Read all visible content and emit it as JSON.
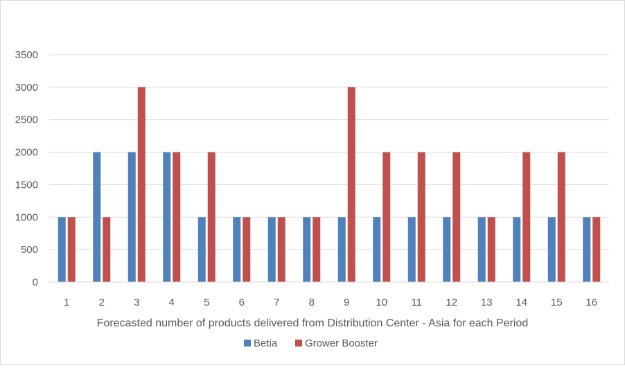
{
  "chart_data": {
    "type": "bar",
    "title": "",
    "xlabel": "Forecasted number of products delivered from Distribution Center - Asia for each Period",
    "ylabel": "",
    "categories": [
      "1",
      "2",
      "3",
      "4",
      "5",
      "6",
      "7",
      "8",
      "9",
      "10",
      "11",
      "12",
      "13",
      "14",
      "15",
      "16"
    ],
    "series": [
      {
        "name": "Betia",
        "color": "#4f81bd",
        "values": [
          1000,
          2000,
          2000,
          2000,
          1000,
          1000,
          1000,
          1000,
          1000,
          1000,
          1000,
          1000,
          1000,
          1000,
          1000,
          1000
        ]
      },
      {
        "name": "Grower Booster",
        "color": "#c0504d",
        "values": [
          1000,
          1000,
          3000,
          2000,
          2000,
          1000,
          1000,
          1000,
          3000,
          2000,
          2000,
          2000,
          1000,
          2000,
          2000,
          1000
        ]
      }
    ],
    "ylim": [
      0,
      3500
    ],
    "yticks": [
      "0",
      "500",
      "1000",
      "1500",
      "2000",
      "2500",
      "3000",
      "3500"
    ],
    "grid": true,
    "legend_position": "bottom"
  }
}
